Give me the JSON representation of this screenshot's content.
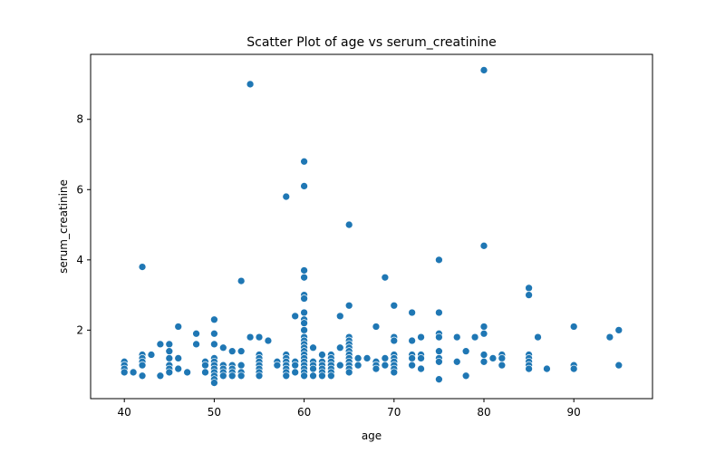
{
  "chart_data": {
    "type": "scatter",
    "title": "Scatter Plot of age vs serum_creatinine",
    "xlabel": "age",
    "ylabel": "serum_creatinine",
    "xlim": [
      36.25,
      98.75
    ],
    "ylim": [
      0.05,
      9.85
    ],
    "xticks": [
      40,
      50,
      60,
      70,
      80,
      90
    ],
    "yticks": [
      2,
      4,
      6,
      8
    ],
    "grid": false,
    "color": "#1f77b4",
    "points": [
      [
        40,
        1.1
      ],
      [
        40,
        1.0
      ],
      [
        40,
        0.9
      ],
      [
        40,
        0.8
      ],
      [
        41,
        0.8
      ],
      [
        42,
        1.3
      ],
      [
        42,
        1.2
      ],
      [
        42,
        1.1
      ],
      [
        42,
        1.0
      ],
      [
        42,
        0.7
      ],
      [
        42,
        3.8
      ],
      [
        43,
        1.3
      ],
      [
        44,
        1.6
      ],
      [
        44,
        0.7
      ],
      [
        45,
        1.6
      ],
      [
        45,
        1.4
      ],
      [
        45,
        1.2
      ],
      [
        45,
        1.0
      ],
      [
        45,
        0.9
      ],
      [
        45,
        0.8
      ],
      [
        46,
        2.1
      ],
      [
        46,
        1.2
      ],
      [
        46,
        0.9
      ],
      [
        47,
        0.8
      ],
      [
        48,
        1.9
      ],
      [
        48,
        1.6
      ],
      [
        49,
        1.1
      ],
      [
        49,
        1.0
      ],
      [
        49,
        0.8
      ],
      [
        50,
        2.3
      ],
      [
        50,
        1.9
      ],
      [
        50,
        1.6
      ],
      [
        50,
        1.2
      ],
      [
        50,
        1.1
      ],
      [
        50,
        1.0
      ],
      [
        50,
        0.9
      ],
      [
        50,
        0.8
      ],
      [
        50,
        0.7
      ],
      [
        50,
        0.6
      ],
      [
        50,
        0.5
      ],
      [
        51,
        1.5
      ],
      [
        51,
        1.0
      ],
      [
        51,
        0.9
      ],
      [
        51,
        0.8
      ],
      [
        51,
        0.7
      ],
      [
        52,
        1.4
      ],
      [
        52,
        1.0
      ],
      [
        52,
        0.9
      ],
      [
        52,
        0.8
      ],
      [
        52,
        0.7
      ],
      [
        53,
        3.4
      ],
      [
        53,
        1.4
      ],
      [
        53,
        1.0
      ],
      [
        53,
        0.8
      ],
      [
        53,
        0.7
      ],
      [
        54,
        9.0
      ],
      [
        54,
        1.8
      ],
      [
        55,
        1.8
      ],
      [
        55,
        1.3
      ],
      [
        55,
        1.2
      ],
      [
        55,
        1.1
      ],
      [
        55,
        1.0
      ],
      [
        55,
        0.9
      ],
      [
        55,
        0.8
      ],
      [
        55,
        0.7
      ],
      [
        56,
        1.7
      ],
      [
        57,
        1.1
      ],
      [
        57,
        1.0
      ],
      [
        58,
        5.8
      ],
      [
        58,
        1.3
      ],
      [
        58,
        1.2
      ],
      [
        58,
        1.1
      ],
      [
        58,
        1.0
      ],
      [
        58,
        0.9
      ],
      [
        58,
        0.8
      ],
      [
        58,
        0.7
      ],
      [
        59,
        2.4
      ],
      [
        59,
        1.1
      ],
      [
        59,
        1.0
      ],
      [
        59,
        0.8
      ],
      [
        60,
        6.8
      ],
      [
        60,
        6.1
      ],
      [
        60,
        3.7
      ],
      [
        60,
        3.5
      ],
      [
        60,
        3.0
      ],
      [
        60,
        2.9
      ],
      [
        60,
        2.5
      ],
      [
        60,
        2.3
      ],
      [
        60,
        2.2
      ],
      [
        60,
        2.0
      ],
      [
        60,
        1.8
      ],
      [
        60,
        1.7
      ],
      [
        60,
        1.6
      ],
      [
        60,
        1.5
      ],
      [
        60,
        1.4
      ],
      [
        60,
        1.3
      ],
      [
        60,
        1.2
      ],
      [
        60,
        1.1
      ],
      [
        60,
        1.0
      ],
      [
        60,
        0.9
      ],
      [
        60,
        0.8
      ],
      [
        60,
        0.7
      ],
      [
        61,
        1.5
      ],
      [
        61,
        1.1
      ],
      [
        61,
        1.0
      ],
      [
        61,
        0.9
      ],
      [
        61,
        0.7
      ],
      [
        62,
        1.3
      ],
      [
        62,
        1.1
      ],
      [
        62,
        1.0
      ],
      [
        62,
        0.9
      ],
      [
        62,
        0.8
      ],
      [
        62,
        0.7
      ],
      [
        63,
        1.3
      ],
      [
        63,
        1.2
      ],
      [
        63,
        1.1
      ],
      [
        63,
        1.0
      ],
      [
        63,
        0.9
      ],
      [
        63,
        0.8
      ],
      [
        63,
        0.7
      ],
      [
        64,
        2.4
      ],
      [
        64,
        1.5
      ],
      [
        64,
        1.0
      ],
      [
        65,
        5.0
      ],
      [
        65,
        2.7
      ],
      [
        65,
        1.8
      ],
      [
        65,
        1.7
      ],
      [
        65,
        1.6
      ],
      [
        65,
        1.5
      ],
      [
        65,
        1.4
      ],
      [
        65,
        1.3
      ],
      [
        65,
        1.2
      ],
      [
        65,
        1.1
      ],
      [
        65,
        1.0
      ],
      [
        65,
        0.9
      ],
      [
        65,
        0.8
      ],
      [
        66,
        1.2
      ],
      [
        66,
        1.0
      ],
      [
        67,
        1.2
      ],
      [
        68,
        2.1
      ],
      [
        68,
        1.1
      ],
      [
        68,
        1.0
      ],
      [
        68,
        0.9
      ],
      [
        69,
        3.5
      ],
      [
        69,
        1.2
      ],
      [
        69,
        1.0
      ],
      [
        70,
        2.7
      ],
      [
        70,
        1.8
      ],
      [
        70,
        1.7
      ],
      [
        70,
        1.3
      ],
      [
        70,
        1.2
      ],
      [
        70,
        1.1
      ],
      [
        70,
        1.0
      ],
      [
        70,
        0.9
      ],
      [
        70,
        0.8
      ],
      [
        72,
        2.5
      ],
      [
        72,
        1.7
      ],
      [
        72,
        1.3
      ],
      [
        72,
        1.2
      ],
      [
        72,
        1.0
      ],
      [
        73,
        1.8
      ],
      [
        73,
        1.3
      ],
      [
        73,
        1.2
      ],
      [
        73,
        0.9
      ],
      [
        75,
        4.0
      ],
      [
        75,
        2.5
      ],
      [
        75,
        1.9
      ],
      [
        75,
        1.8
      ],
      [
        75,
        1.4
      ],
      [
        75,
        1.2
      ],
      [
        75,
        1.1
      ],
      [
        75,
        0.6
      ],
      [
        77,
        1.8
      ],
      [
        77,
        1.1
      ],
      [
        78,
        1.4
      ],
      [
        78,
        0.7
      ],
      [
        79,
        1.8
      ],
      [
        80,
        9.4
      ],
      [
        80,
        4.4
      ],
      [
        80,
        2.1
      ],
      [
        80,
        1.9
      ],
      [
        80,
        1.3
      ],
      [
        80,
        1.1
      ],
      [
        81,
        1.2
      ],
      [
        82,
        1.3
      ],
      [
        82,
        1.2
      ],
      [
        82,
        1.0
      ],
      [
        85,
        3.2
      ],
      [
        85,
        3.0
      ],
      [
        85,
        1.3
      ],
      [
        85,
        1.2
      ],
      [
        85,
        1.1
      ],
      [
        85,
        1.0
      ],
      [
        85,
        0.9
      ],
      [
        86,
        1.8
      ],
      [
        87,
        0.9
      ],
      [
        90,
        2.1
      ],
      [
        90,
        1.0
      ],
      [
        90,
        0.9
      ],
      [
        94,
        1.8
      ],
      [
        95,
        2.0
      ],
      [
        95,
        1.0
      ]
    ]
  }
}
